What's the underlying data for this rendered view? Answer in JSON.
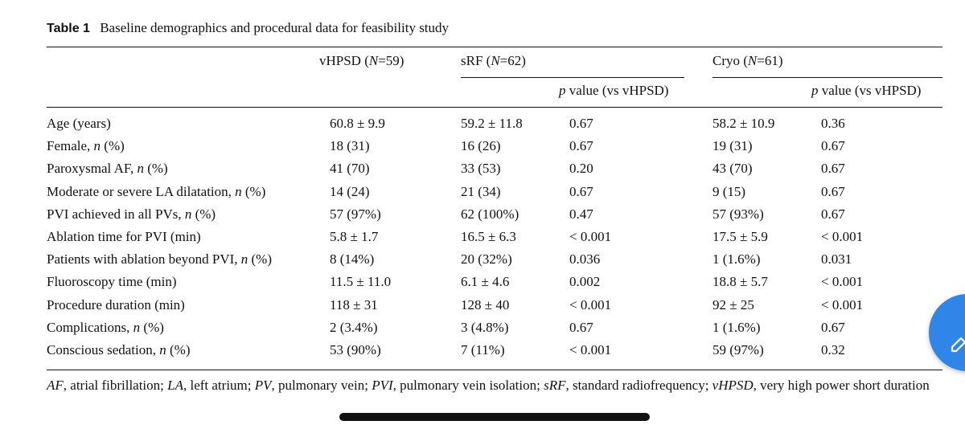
{
  "caption": {
    "label": "Table 1",
    "title": "Baseline demographics and procedural data for feasibility study"
  },
  "groups": {
    "vhpsd": {
      "name": "vHPSD (",
      "n_var": "N",
      "n_val": "=59)"
    },
    "srf": {
      "name": "sRF (",
      "n_var": "N",
      "n_val": "=62)"
    },
    "cryo": {
      "name": "Cryo (",
      "n_var": "N",
      "n_val": "=61)"
    }
  },
  "pvalue_header": {
    "p": "p",
    "rest": " value (vs vHPSD)"
  },
  "rows": [
    {
      "label": "Age (years)",
      "label_n": "",
      "label_suffix": "",
      "vhpsd": "60.8 ± 9.9",
      "srf": "59.2 ± 11.8",
      "srf_p": "0.67",
      "cryo": "58.2 ± 10.9",
      "cryo_p": "0.36"
    },
    {
      "label": "Female, ",
      "label_n": "n",
      "label_suffix": " (%)",
      "vhpsd": "18 (31)",
      "srf": "16 (26)",
      "srf_p": "0.67",
      "cryo": "19 (31)",
      "cryo_p": "0.67"
    },
    {
      "label": "Paroxysmal AF, ",
      "label_n": "n",
      "label_suffix": " (%)",
      "vhpsd": "41 (70)",
      "srf": "33 (53)",
      "srf_p": "0.20",
      "cryo": "43 (70)",
      "cryo_p": "0.67"
    },
    {
      "label": "Moderate or severe LA dilatation, ",
      "label_n": "n",
      "label_suffix": " (%)",
      "vhpsd": "14 (24)",
      "srf": "21 (34)",
      "srf_p": "0.67",
      "cryo": "9 (15)",
      "cryo_p": "0.67"
    },
    {
      "label": "PVI achieved in all PVs, ",
      "label_n": "n",
      "label_suffix": " (%)",
      "vhpsd": "57 (97%)",
      "srf": "62 (100%)",
      "srf_p": "0.47",
      "cryo": "57 (93%)",
      "cryo_p": "0.67"
    },
    {
      "label": "Ablation time for PVI (min)",
      "label_n": "",
      "label_suffix": "",
      "vhpsd": "5.8 ± 1.7",
      "srf": "16.5 ± 6.3",
      "srf_p": "< 0.001",
      "cryo": "17.5 ± 5.9",
      "cryo_p": "< 0.001"
    },
    {
      "label": "Patients with ablation beyond PVI, ",
      "label_n": "n",
      "label_suffix": " (%)",
      "vhpsd": "8 (14%)",
      "srf": "20 (32%)",
      "srf_p": "0.036",
      "cryo": "1 (1.6%)",
      "cryo_p": "0.031"
    },
    {
      "label": "Fluoroscopy time (min)",
      "label_n": "",
      "label_suffix": "",
      "vhpsd": "11.5 ± 11.0",
      "srf": "6.1 ± 4.6",
      "srf_p": "0.002",
      "cryo": "18.8 ± 5.7",
      "cryo_p": "< 0.001"
    },
    {
      "label": "Procedure duration (min)",
      "label_n": "",
      "label_suffix": "",
      "vhpsd": "118 ± 31",
      "srf": "128 ± 40",
      "srf_p": "< 0.001",
      "cryo": "92 ± 25",
      "cryo_p": "< 0.001"
    },
    {
      "label": "Complications, ",
      "label_n": "n",
      "label_suffix": " (%)",
      "vhpsd": "2 (3.4%)",
      "srf": "3 (4.8%)",
      "srf_p": "0.67",
      "cryo": "1 (1.6%)",
      "cryo_p": "0.67"
    },
    {
      "label": "Conscious sedation, ",
      "label_n": "n",
      "label_suffix": " (%)",
      "vhpsd": "53 (90%)",
      "srf": "7 (11%)",
      "srf_p": "< 0.001",
      "cryo": "59 (97%)",
      "cryo_p": "0.32"
    }
  ],
  "footnote": [
    {
      "abbr": "AF",
      "def": ", atrial fibrillation; "
    },
    {
      "abbr": "LA",
      "def": ", left atrium; "
    },
    {
      "abbr": "PV",
      "def": ", pulmonary vein; "
    },
    {
      "abbr": "PVI",
      "def": ", pulmonary vein isolation; "
    },
    {
      "abbr": "sRF",
      "def": ", standard radiofrequency; "
    },
    {
      "abbr": "vHPSD",
      "def": ", very high power short duration"
    }
  ]
}
